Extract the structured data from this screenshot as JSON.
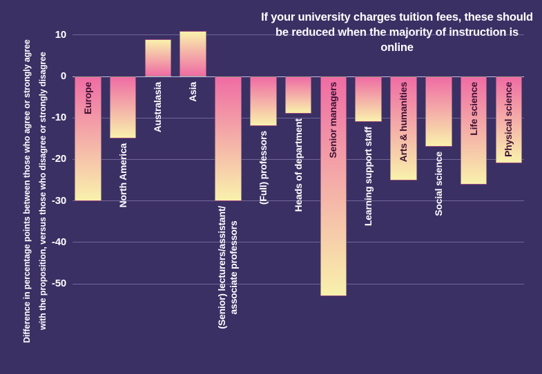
{
  "colors": {
    "background": "#3b3064",
    "bar_pink": "#ef6ca4",
    "bar_cream": "#f9f1ac",
    "label_dark": "#3d1134",
    "label_white": "#ffffff",
    "gridline": "#a79cc8",
    "zero_line": "#c4bce2",
    "title_text": "#ffffff"
  },
  "chart_data": {
    "type": "bar",
    "title": "If your university charges tuition fees, these should\nbe reduced when the majority of instruction is online",
    "ylabel": "Difference in percentage points between those who agree or strongly agree\nwith the proposition, versus those who disagree or strongly disagree",
    "xlabel": "",
    "yticks": [
      10,
      0,
      -10,
      -20,
      -30,
      -40,
      -50
    ],
    "ylim": [
      -57,
      13
    ],
    "grid": true,
    "legend": "none",
    "bar_gradient_note": "pink at zero baseline fading to cream at bar tip",
    "categories": [
      "Europe",
      "North America",
      "Australasia",
      "Asia",
      "(Senior) lecturers/assistant/\nassociate professors",
      "(Full) professors",
      "Heads of department",
      "Senior managers",
      "Learning support staff",
      "Arts & humanities",
      "Social science",
      "Life science",
      "Physical science"
    ],
    "values": [
      -30,
      -15,
      9,
      11,
      -30,
      -12,
      -9,
      -53,
      -11,
      -25,
      -17,
      -26,
      -21
    ],
    "label_styles": [
      "dark",
      "white",
      "white",
      "white",
      "white",
      "white",
      "white",
      "dark",
      "white",
      "dark",
      "white",
      "dark",
      "dark"
    ]
  }
}
